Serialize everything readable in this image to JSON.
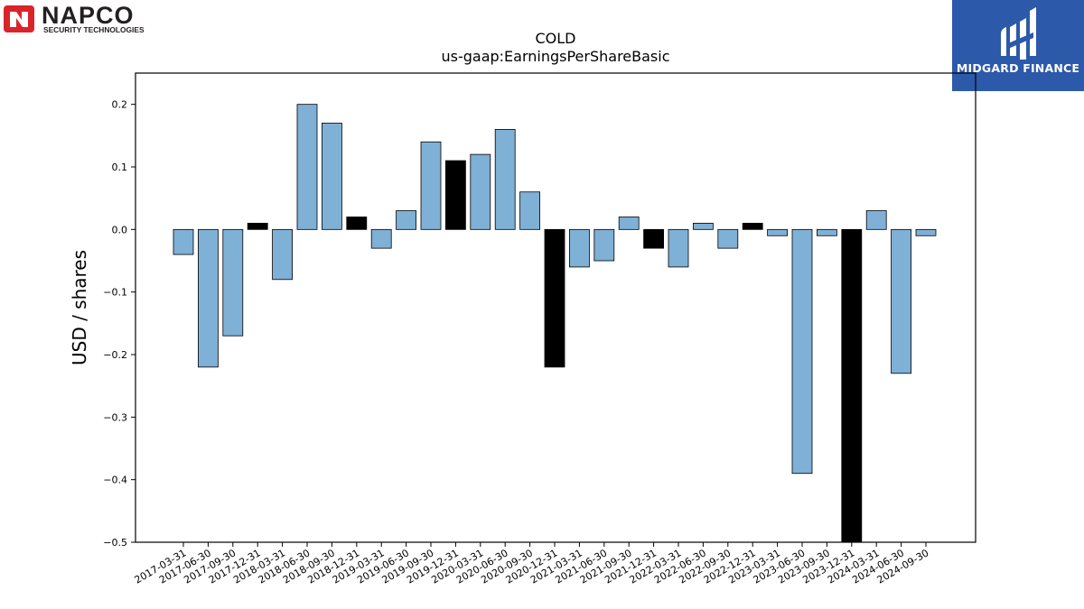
{
  "logos": {
    "left": {
      "name": "NAPCO",
      "tagline": "SECURITY TECHNOLOGIES",
      "accent": "#d9252a",
      "text_color": "#231f20"
    },
    "right": {
      "name": "MIDGARD FINANCE",
      "background": "#2c59aa",
      "text_color": "#ffffff"
    }
  },
  "chart_data": {
    "type": "bar",
    "title": "COLD",
    "subtitle": "us-gaap:EarningsPerShareBasic",
    "xlabel": "",
    "ylabel": "USD / shares",
    "ylim": [
      -0.5,
      0.25
    ],
    "yticks": [
      0.2,
      0.1,
      0.0,
      -0.1,
      -0.2,
      -0.3,
      -0.4,
      -0.5
    ],
    "ytick_labels": [
      "0.2",
      "0.1",
      "0.0",
      "−0.1",
      "−0.2",
      "−0.3",
      "−0.4",
      "−0.5"
    ],
    "grid": false,
    "colors": {
      "quarter": "#7fb0d5",
      "annual": "#000000",
      "edge": "#000000"
    },
    "categories": [
      "2017-03-31",
      "2017-06-30",
      "2017-09-30",
      "2017-12-31",
      "2018-03-31",
      "2018-06-30",
      "2018-09-30",
      "2018-12-31",
      "2019-03-31",
      "2019-06-30",
      "2019-09-30",
      "2019-12-31",
      "2020-03-31",
      "2020-06-30",
      "2020-09-30",
      "2020-12-31",
      "2021-03-31",
      "2021-06-30",
      "2021-09-30",
      "2021-12-31",
      "2022-03-31",
      "2022-06-30",
      "2022-09-30",
      "2022-12-31",
      "2023-03-31",
      "2023-06-30",
      "2023-09-30",
      "2023-12-31",
      "2024-03-31",
      "2024-06-30",
      "2024-09-30"
    ],
    "values": [
      -0.04,
      -0.22,
      -0.17,
      0.01,
      -0.08,
      0.2,
      0.17,
      0.02,
      -0.03,
      0.03,
      0.14,
      0.11,
      0.12,
      0.16,
      0.06,
      -0.22,
      -0.06,
      -0.05,
      0.02,
      -0.03,
      -0.06,
      0.01,
      -0.03,
      0.01,
      -0.01,
      -0.39,
      -0.01,
      -0.5,
      0.03,
      -0.23,
      -0.01
    ],
    "highlight": [
      false,
      false,
      false,
      true,
      false,
      false,
      false,
      true,
      false,
      false,
      false,
      true,
      false,
      false,
      false,
      true,
      false,
      false,
      false,
      true,
      false,
      false,
      false,
      true,
      false,
      false,
      false,
      true,
      false,
      false,
      false
    ]
  }
}
